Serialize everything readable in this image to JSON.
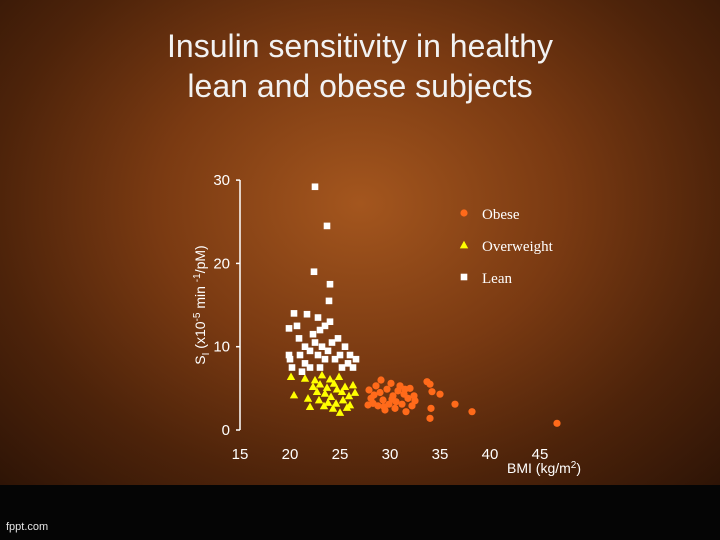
{
  "title_line1": "Insulin sensitivity in healthy",
  "title_line2": "lean and obese subjects",
  "watermark": "fppt.com",
  "chart_data": {
    "type": "scatter",
    "xlabel": "BMI (kg/m2)",
    "ylabel": "SI (x10-5 min -1/pM)",
    "xticks": [
      "15",
      "20",
      "25",
      "30",
      "35",
      "40",
      "45"
    ],
    "yticks": [
      "0",
      "10",
      "20",
      "30"
    ],
    "xlim": [
      15,
      47
    ],
    "ylim": [
      0,
      30
    ],
    "legend_position": "top-right",
    "series": [
      {
        "name": "Obese",
        "marker": "circle",
        "color": "#ff6a1a",
        "points": [
          [
            27.9,
            4.8
          ],
          [
            28.1,
            3.8
          ],
          [
            28.3,
            3.2
          ],
          [
            28.6,
            5.3
          ],
          [
            28.8,
            2.9
          ],
          [
            29.0,
            4.5
          ],
          [
            29.1,
            6.0
          ],
          [
            29.3,
            3.6
          ],
          [
            29.5,
            2.4
          ],
          [
            29.7,
            4.9
          ],
          [
            29.9,
            3.1
          ],
          [
            30.1,
            5.6
          ],
          [
            30.3,
            4.1
          ],
          [
            30.5,
            2.6
          ],
          [
            30.6,
            3.4
          ],
          [
            30.8,
            4.7
          ],
          [
            31.0,
            5.3
          ],
          [
            31.2,
            3.1
          ],
          [
            31.4,
            4.3
          ],
          [
            31.6,
            2.2
          ],
          [
            31.8,
            3.8
          ],
          [
            32.0,
            5.0
          ],
          [
            32.2,
            2.9
          ],
          [
            32.4,
            4.1
          ],
          [
            32.5,
            3.5
          ],
          [
            27.8,
            3.0
          ],
          [
            28.4,
            4.2
          ],
          [
            29.4,
            2.8
          ],
          [
            30.2,
            3.7
          ],
          [
            31.5,
            4.9
          ],
          [
            33.7,
            5.8
          ],
          [
            34.0,
            5.5
          ],
          [
            34.2,
            4.6
          ],
          [
            34.1,
            2.6
          ],
          [
            34.0,
            1.4
          ],
          [
            35.0,
            4.3
          ],
          [
            36.5,
            3.1
          ],
          [
            38.2,
            2.2
          ],
          [
            46.7,
            0.8
          ]
        ]
      },
      {
        "name": "Overweight",
        "marker": "triangle",
        "color": "#ffff00",
        "points": [
          [
            20.1,
            6.4
          ],
          [
            20.4,
            4.2
          ],
          [
            21.5,
            6.2
          ],
          [
            21.8,
            3.8
          ],
          [
            22.0,
            2.8
          ],
          [
            22.3,
            5.2
          ],
          [
            22.5,
            6.0
          ],
          [
            22.7,
            4.6
          ],
          [
            22.9,
            3.6
          ],
          [
            23.0,
            5.5
          ],
          [
            23.2,
            6.6
          ],
          [
            23.4,
            2.9
          ],
          [
            23.5,
            4.4
          ],
          [
            23.7,
            5.1
          ],
          [
            23.8,
            3.3
          ],
          [
            24.0,
            6.1
          ],
          [
            24.1,
            4.0
          ],
          [
            24.3,
            2.6
          ],
          [
            24.4,
            5.6
          ],
          [
            24.6,
            3.2
          ],
          [
            24.7,
            4.9
          ],
          [
            24.9,
            6.4
          ],
          [
            25.0,
            2.1
          ],
          [
            25.2,
            4.6
          ],
          [
            25.3,
            3.6
          ],
          [
            25.5,
            5.2
          ],
          [
            25.7,
            2.7
          ],
          [
            25.9,
            4.1
          ],
          [
            26.0,
            3.0
          ],
          [
            26.3,
            5.4
          ],
          [
            26.5,
            4.5
          ]
        ]
      },
      {
        "name": "Lean",
        "marker": "square",
        "color": "#ffffff",
        "points": [
          [
            22.5,
            29.2
          ],
          [
            23.7,
            24.5
          ],
          [
            22.4,
            19.0
          ],
          [
            20.4,
            14.0
          ],
          [
            20.7,
            12.5
          ],
          [
            19.9,
            12.2
          ],
          [
            21.7,
            13.9
          ],
          [
            20.9,
            11.0
          ],
          [
            24.0,
            17.5
          ],
          [
            23.9,
            15.5
          ],
          [
            24.0,
            13.0
          ],
          [
            22.3,
            11.5
          ],
          [
            19.9,
            9.0
          ],
          [
            20.0,
            8.5
          ],
          [
            20.2,
            7.5
          ],
          [
            21.0,
            9.0
          ],
          [
            21.2,
            7.0
          ],
          [
            22.0,
            9.5
          ],
          [
            22.5,
            10.5
          ],
          [
            23.0,
            12.0
          ],
          [
            23.2,
            10.0
          ],
          [
            23.5,
            8.5
          ],
          [
            23.0,
            7.5
          ],
          [
            22.0,
            7.5
          ],
          [
            21.5,
            8.0
          ],
          [
            22.8,
            9.0
          ],
          [
            23.8,
            9.5
          ],
          [
            24.2,
            10.5
          ],
          [
            24.5,
            8.5
          ],
          [
            24.8,
            11.0
          ],
          [
            25.0,
            9.0
          ],
          [
            25.2,
            7.5
          ],
          [
            25.5,
            10.0
          ],
          [
            25.8,
            8.0
          ],
          [
            26.0,
            9.0
          ],
          [
            26.3,
            7.5
          ],
          [
            26.6,
            8.5
          ],
          [
            22.8,
            13.5
          ],
          [
            23.5,
            12.5
          ],
          [
            21.5,
            10.0
          ]
        ]
      }
    ]
  }
}
